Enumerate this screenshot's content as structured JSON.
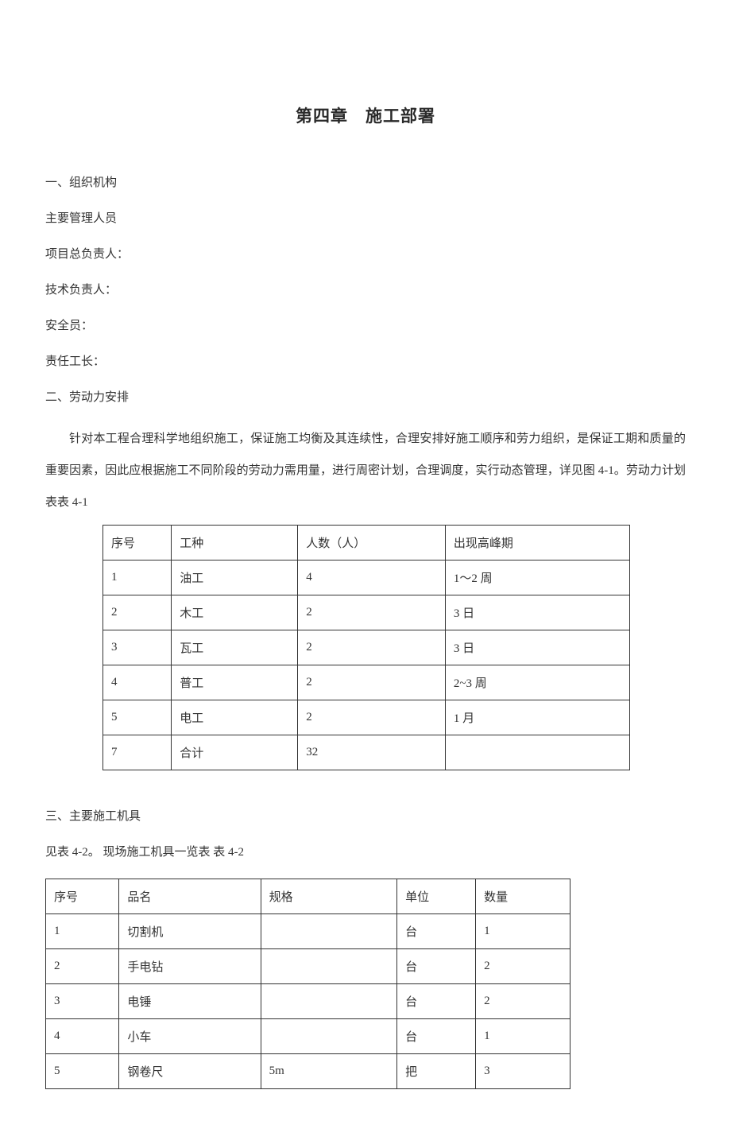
{
  "chapter_title": "第四章　施工部署",
  "sections": {
    "s1_heading": "一、组织机构",
    "s1_line1": "主要管理人员",
    "s1_line2": "项目总负责人：",
    "s1_line3": "技术负责人：",
    "s1_line4": "安全员：",
    "s1_line5": "责任工长：",
    "s2_heading": "二、劳动力安排",
    "s2_paragraph": "针对本工程合理科学地组织施工，保证施工均衡及其连续性，合理安排好施工顺序和劳力组织，是保证工期和质量的重要因素，因此应根据施工不同阶段的劳动力需用量，进行周密计划，合理调度，实行动态管理，详见图 4-1。劳动力计划表表 4-1",
    "s3_heading": "三、主要施工机具",
    "s3_subheading": "见表 4-2。  现场施工机具一览表  表 4-2"
  },
  "table1": {
    "type": "table",
    "border_color": "#333333",
    "text_color": "#333333",
    "font_size": 15,
    "col_widths_pct": [
      13,
      24,
      28,
      35
    ],
    "columns": [
      "序号",
      "工种",
      "人数（人）",
      "出现高峰期"
    ],
    "rows": [
      [
        "1",
        "油工",
        "4",
        "1～2 周"
      ],
      [
        "2",
        "木工",
        "2",
        "3 日"
      ],
      [
        "3",
        "瓦工",
        "2",
        "3 日"
      ],
      [
        "4",
        "普工",
        "2",
        "2~3 周"
      ],
      [
        "5",
        "电工",
        "2",
        "1 月"
      ],
      [
        "7",
        "合计",
        "32",
        ""
      ]
    ]
  },
  "table2": {
    "type": "table",
    "border_color": "#333333",
    "text_color": "#333333",
    "font_size": 15,
    "col_widths_pct": [
      14,
      27,
      26,
      15,
      18
    ],
    "columns": [
      "序号",
      "品名",
      "规格",
      "单位",
      "数量"
    ],
    "rows": [
      [
        "1",
        "切割机",
        "",
        "台",
        "1"
      ],
      [
        "2",
        "手电钻",
        "",
        "台",
        "2"
      ],
      [
        "3",
        "电锤",
        "",
        "台",
        "2"
      ],
      [
        "4",
        "小车",
        "",
        "台",
        "1"
      ],
      [
        "5",
        "钢卷尺",
        "5m",
        "把",
        "3"
      ]
    ]
  },
  "styling": {
    "background_color": "#ffffff",
    "title_fontsize": 21,
    "title_color": "#2a2a2a",
    "body_fontsize": 15,
    "body_color": "#333333",
    "line_height": 2.65
  }
}
